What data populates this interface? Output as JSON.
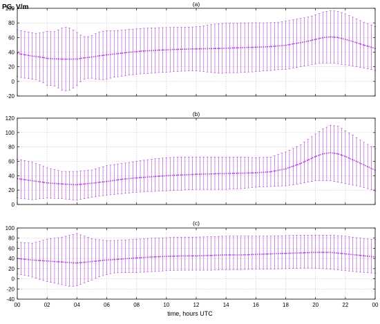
{
  "figure": {
    "ylabel": "PG, V/m",
    "xlabel": "time, hours UTC",
    "x_tick_labels": [
      "00",
      "02",
      "04",
      "06",
      "08",
      "10",
      "12",
      "14",
      "16",
      "18",
      "20",
      "22",
      "00"
    ]
  },
  "colors": {
    "series": "#b040d8",
    "frame": "#000000",
    "grid": "#bdbdbd"
  },
  "chart_data": [
    {
      "type": "line",
      "panel_label": "(a)",
      "x": [
        0,
        0.25,
        0.5,
        0.75,
        1,
        1.25,
        1.5,
        1.75,
        2,
        2.25,
        2.5,
        2.75,
        3,
        3.25,
        3.5,
        3.75,
        4,
        4.25,
        4.5,
        4.75,
        5,
        5.25,
        5.5,
        5.75,
        6,
        6.25,
        6.5,
        6.75,
        7,
        7.25,
        7.5,
        7.75,
        8,
        8.25,
        8.5,
        8.75,
        9,
        9.25,
        9.5,
        9.75,
        10,
        10.25,
        10.5,
        10.75,
        11,
        11.25,
        11.5,
        11.75,
        12,
        12.25,
        12.5,
        12.75,
        13,
        13.25,
        13.5,
        13.75,
        14,
        14.25,
        14.5,
        14.75,
        15,
        15.25,
        15.5,
        15.75,
        16,
        16.25,
        16.5,
        16.75,
        17,
        17.25,
        17.5,
        17.75,
        18,
        18.25,
        18.5,
        18.75,
        19,
        19.25,
        19.5,
        19.75,
        20,
        20.25,
        20.5,
        20.75,
        21,
        21.25,
        21.5,
        21.75,
        22,
        22.25,
        22.5,
        22.75,
        23,
        23.25,
        23.5,
        23.75,
        24
      ],
      "mean": [
        38.5,
        37.4,
        36.4,
        35.6,
        34.7,
        34.1,
        33.4,
        32.6,
        31.4,
        31.2,
        30.9,
        30.7,
        30.5,
        30.5,
        30.5,
        30.6,
        30.6,
        31.4,
        32.2,
        32.8,
        33.5,
        34.2,
        35.0,
        35.6,
        36.3,
        36.9,
        37.5,
        38.0,
        38.5,
        39.2,
        39.9,
        40.3,
        40.8,
        41.2,
        41.6,
        41.9,
        42.2,
        42.5,
        42.8,
        43.0,
        43.2,
        43.4,
        43.6,
        43.8,
        44.0,
        44.1,
        44.3,
        44.4,
        44.5,
        44.6,
        44.7,
        44.8,
        44.9,
        45.0,
        45.1,
        45.2,
        45.4,
        45.6,
        45.8,
        45.9,
        46.1,
        46.3,
        46.5,
        46.6,
        46.8,
        47.0,
        47.2,
        47.4,
        47.6,
        48.0,
        48.5,
        48.9,
        49.4,
        50.3,
        51.3,
        52.2,
        53.1,
        54.0,
        55.1,
        56.3,
        57.5,
        58.7,
        59.8,
        60.4,
        60.9,
        60.6,
        60.0,
        58.7,
        57.5,
        56.1,
        54.5,
        52.9,
        51.2,
        49.6,
        48.2,
        46.6,
        45.0
      ],
      "upper": [
        70.6,
        69.4,
        68.3,
        67.3,
        66.4,
        65.8,
        66.2,
        67.1,
        68.4,
        68.0,
        68.1,
        70.3,
        72.9,
        74.0,
        73.0,
        70.3,
        66.9,
        63.3,
        61.3,
        61.3,
        62.6,
        65.3,
        67.4,
        68.7,
        69.3,
        69.4,
        69.2,
        69.7,
        70.1,
        70.6,
        71.2,
        71.5,
        71.8,
        72.2,
        72.7,
        73.0,
        73.2,
        73.3,
        73.5,
        73.6,
        73.7,
        73.8,
        73.9,
        74.0,
        74.0,
        74.1,
        74.2,
        74.4,
        74.7,
        75.2,
        75.9,
        76.7,
        77.6,
        78.4,
        78.9,
        79.3,
        79.4,
        79.5,
        79.7,
        79.9,
        80.0,
        80.1,
        80.1,
        80.2,
        80.2,
        80.2,
        80.1,
        80.2,
        80.3,
        80.6,
        81.0,
        81.6,
        82.3,
        83.3,
        84.3,
        85.3,
        86.2,
        87.0,
        88.1,
        89.4,
        91.0,
        92.8,
        94.6,
        95.8,
        96.6,
        96.4,
        95.7,
        94.2,
        92.4,
        90.2,
        87.8,
        85.5,
        83.1,
        81.0,
        79.1,
        77.1,
        75.0
      ],
      "lower": [
        6.4,
        5.4,
        4.5,
        3.9,
        3.0,
        2.4,
        0.6,
        -1.9,
        -5.6,
        -5.6,
        -6.3,
        -8.9,
        -11.9,
        -13.0,
        -12.0,
        -9.1,
        -5.7,
        -0.5,
        3.1,
        4.3,
        4.4,
        3.1,
        2.6,
        2.5,
        3.3,
        4.4,
        5.8,
        6.3,
        6.9,
        7.8,
        8.6,
        9.1,
        9.8,
        10.2,
        10.5,
        10.8,
        11.2,
        11.7,
        12.1,
        12.4,
        12.7,
        13.0,
        13.3,
        13.6,
        14.0,
        14.1,
        14.4,
        14.4,
        14.3,
        14.0,
        13.5,
        12.9,
        12.2,
        11.6,
        11.3,
        11.1,
        11.4,
        11.7,
        11.9,
        11.9,
        12.2,
        12.5,
        12.9,
        13.0,
        13.4,
        13.8,
        14.3,
        14.6,
        14.9,
        15.4,
        16.0,
        16.2,
        16.5,
        17.3,
        18.3,
        19.1,
        20.0,
        21.0,
        22.1,
        23.2,
        24.0,
        24.6,
        25.0,
        25.0,
        25.2,
        24.8,
        24.3,
        23.2,
        22.6,
        22.0,
        21.2,
        20.3,
        19.3,
        18.2,
        17.3,
        16.1,
        15.0
      ],
      "ylim": [
        -20,
        100
      ],
      "yticks": [
        -20,
        0,
        20,
        40,
        60,
        80,
        100
      ]
    },
    {
      "type": "line",
      "panel_label": "(b)",
      "x": [
        0,
        0.25,
        0.5,
        0.75,
        1,
        1.25,
        1.5,
        1.75,
        2,
        2.25,
        2.5,
        2.75,
        3,
        3.25,
        3.5,
        3.75,
        4,
        4.25,
        4.5,
        4.75,
        5,
        5.25,
        5.5,
        5.75,
        6,
        6.25,
        6.5,
        6.75,
        7,
        7.25,
        7.5,
        7.75,
        8,
        8.25,
        8.5,
        8.75,
        9,
        9.25,
        9.5,
        9.75,
        10,
        10.25,
        10.5,
        10.75,
        11,
        11.25,
        11.5,
        11.75,
        12,
        12.25,
        12.5,
        12.75,
        13,
        13.25,
        13.5,
        13.75,
        14,
        14.25,
        14.5,
        14.75,
        15,
        15.25,
        15.5,
        15.75,
        16,
        16.25,
        16.5,
        16.75,
        17,
        17.25,
        17.5,
        17.75,
        18,
        18.25,
        18.5,
        18.75,
        19,
        19.25,
        19.5,
        19.75,
        20,
        20.25,
        20.5,
        20.75,
        21,
        21.25,
        21.5,
        21.75,
        22,
        22.25,
        22.5,
        22.75,
        23,
        23.25,
        23.5,
        23.75,
        24
      ],
      "mean": [
        36.0,
        35.2,
        34.5,
        33.7,
        33.0,
        32.3,
        31.6,
        30.8,
        30.0,
        29.6,
        29.3,
        28.9,
        28.5,
        28.2,
        28.0,
        27.7,
        27.5,
        28.0,
        28.5,
        29.0,
        29.5,
        30.1,
        30.8,
        31.4,
        32.0,
        32.8,
        33.5,
        34.3,
        35.0,
        35.5,
        36.0,
        36.5,
        37.0,
        37.4,
        37.8,
        38.2,
        38.5,
        38.9,
        39.3,
        39.6,
        40.0,
        40.3,
        40.6,
        40.8,
        41.0,
        41.3,
        41.5,
        41.8,
        42.0,
        42.1,
        42.3,
        42.4,
        42.5,
        42.6,
        42.8,
        42.9,
        43.0,
        43.1,
        43.3,
        43.4,
        43.5,
        43.6,
        43.8,
        43.9,
        44.0,
        44.4,
        44.8,
        45.1,
        45.5,
        46.5,
        47.5,
        48.5,
        49.5,
        51.4,
        53.2,
        55.1,
        57.0,
        59.4,
        61.8,
        64.3,
        66.7,
        68.6,
        70.4,
        71.2,
        72.0,
        71.2,
        70.4,
        68.6,
        66.8,
        64.5,
        62.2,
        59.8,
        57.5,
        55.0,
        52.5,
        50.0,
        47.5
      ],
      "upper": [
        63.0,
        62.0,
        61.0,
        60.0,
        59.0,
        57.0,
        55.0,
        53.0,
        51.0,
        49.8,
        48.5,
        47.3,
        46.0,
        46.0,
        46.0,
        46.0,
        46.0,
        46.5,
        47.0,
        47.5,
        48.0,
        49.5,
        51.0,
        52.5,
        54.0,
        54.8,
        55.5,
        56.3,
        57.0,
        57.8,
        58.5,
        59.3,
        60.0,
        60.8,
        61.5,
        62.3,
        63.0,
        63.5,
        64.0,
        64.5,
        65.0,
        65.3,
        65.5,
        65.8,
        66.0,
        66.0,
        66.0,
        66.0,
        66.0,
        66.0,
        66.0,
        66.0,
        66.0,
        66.0,
        66.0,
        66.0,
        66.0,
        66.0,
        66.0,
        66.0,
        66.0,
        65.8,
        65.5,
        65.3,
        65.0,
        65.3,
        65.5,
        65.8,
        66.0,
        67.8,
        69.5,
        71.3,
        73.0,
        75.5,
        78.0,
        80.5,
        83.0,
        86.8,
        90.5,
        94.3,
        98.0,
        101.5,
        105.0,
        107.5,
        110.0,
        109.5,
        109.0,
        105.8,
        102.5,
        99.5,
        96.5,
        93.0,
        89.5,
        86.5,
        83.5,
        80.5,
        77.5
      ],
      "lower": [
        9.0,
        8.4,
        7.8,
        7.3,
        6.7,
        7.2,
        7.8,
        8.3,
        8.8,
        8.6,
        8.4,
        8.2,
        8.0,
        7.5,
        7.0,
        6.5,
        6.0,
        7.0,
        8.0,
        9.0,
        10.0,
        10.8,
        11.5,
        12.3,
        13.0,
        13.5,
        14.0,
        14.5,
        15.0,
        15.5,
        16.0,
        16.5,
        17.0,
        17.3,
        17.5,
        17.8,
        18.0,
        18.3,
        18.5,
        18.8,
        19.0,
        19.3,
        19.5,
        19.8,
        20.0,
        20.3,
        20.5,
        20.8,
        21.0,
        21.0,
        21.0,
        21.0,
        21.0,
        21.0,
        21.0,
        21.0,
        21.0,
        21.3,
        21.5,
        21.8,
        22.0,
        22.5,
        23.0,
        23.5,
        24.0,
        24.3,
        24.5,
        24.8,
        25.0,
        25.3,
        25.5,
        25.8,
        26.0,
        26.8,
        27.5,
        28.3,
        29.0,
        30.0,
        31.0,
        32.0,
        33.0,
        33.0,
        33.0,
        33.0,
        33.0,
        32.0,
        31.0,
        30.0,
        29.0,
        28.0,
        27.0,
        26.0,
        25.0,
        23.5,
        22.0,
        20.5,
        19.0
      ],
      "ylim": [
        0,
        120
      ],
      "yticks": [
        0,
        20,
        40,
        60,
        80,
        100,
        120
      ]
    },
    {
      "type": "line",
      "panel_label": "(c)",
      "x": [
        0,
        0.25,
        0.5,
        0.75,
        1,
        1.25,
        1.5,
        1.75,
        2,
        2.25,
        2.5,
        2.75,
        3,
        3.25,
        3.5,
        3.75,
        4,
        4.25,
        4.5,
        4.75,
        5,
        5.25,
        5.5,
        5.75,
        6,
        6.25,
        6.5,
        6.75,
        7,
        7.25,
        7.5,
        7.75,
        8,
        8.25,
        8.5,
        8.75,
        9,
        9.25,
        9.5,
        9.75,
        10,
        10.25,
        10.5,
        10.75,
        11,
        11.25,
        11.5,
        11.75,
        12,
        12.25,
        12.5,
        12.75,
        13,
        13.25,
        13.5,
        13.75,
        14,
        14.25,
        14.5,
        14.75,
        15,
        15.25,
        15.5,
        15.75,
        16,
        16.25,
        16.5,
        16.75,
        17,
        17.25,
        17.5,
        17.75,
        18,
        18.25,
        18.5,
        18.75,
        19,
        19.25,
        19.5,
        19.75,
        20,
        20.25,
        20.5,
        20.75,
        21,
        21.25,
        21.5,
        21.75,
        22,
        22.25,
        22.5,
        22.75,
        23,
        23.25,
        23.5,
        23.75,
        24
      ],
      "mean": [
        40.0,
        39.3,
        38.5,
        37.8,
        37.0,
        36.5,
        36.0,
        35.5,
        35.0,
        34.5,
        34.0,
        33.5,
        33.0,
        32.5,
        32.0,
        31.5,
        31.0,
        31.8,
        32.5,
        33.3,
        34.0,
        34.8,
        35.5,
        36.3,
        37.0,
        37.5,
        38.0,
        38.5,
        39.0,
        39.5,
        40.0,
        40.5,
        41.0,
        41.5,
        42.0,
        42.5,
        43.0,
        43.3,
        43.5,
        43.8,
        44.0,
        44.3,
        44.5,
        44.8,
        45.0,
        45.0,
        45.0,
        45.0,
        45.0,
        45.3,
        45.5,
        45.8,
        46.0,
        46.3,
        46.5,
        46.8,
        47.0,
        47.0,
        47.0,
        47.0,
        47.0,
        47.3,
        47.5,
        47.8,
        48.0,
        48.3,
        48.5,
        48.8,
        49.0,
        49.3,
        49.5,
        49.8,
        50.0,
        50.3,
        50.5,
        50.8,
        51.0,
        51.3,
        51.5,
        51.8,
        52.0,
        52.0,
        52.0,
        52.0,
        52.0,
        51.3,
        50.5,
        49.8,
        49.0,
        48.3,
        47.5,
        46.8,
        46.0,
        45.3,
        44.5,
        43.8,
        43.0
      ],
      "upper": [
        72.0,
        71.5,
        71.0,
        70.5,
        70.0,
        72.0,
        74.0,
        76.0,
        78.0,
        79.0,
        80.0,
        81.0,
        82.0,
        83.8,
        85.5,
        87.3,
        89.0,
        86.5,
        84.0,
        81.5,
        79.0,
        78.0,
        77.0,
        76.0,
        75.0,
        75.3,
        75.5,
        75.8,
        76.0,
        76.5,
        77.0,
        77.5,
        78.0,
        78.5,
        79.0,
        79.5,
        80.0,
        80.3,
        80.5,
        80.8,
        81.0,
        81.3,
        81.5,
        81.8,
        82.0,
        82.0,
        82.0,
        82.0,
        82.0,
        82.3,
        82.5,
        82.8,
        83.0,
        83.3,
        83.5,
        83.8,
        84.0,
        84.0,
        84.0,
        84.0,
        84.0,
        84.0,
        84.0,
        84.0,
        84.0,
        84.0,
        84.0,
        84.0,
        84.0,
        84.3,
        84.5,
        84.8,
        85.0,
        85.3,
        85.5,
        85.8,
        86.0,
        86.0,
        86.0,
        86.0,
        86.0,
        86.0,
        86.0,
        86.0,
        86.0,
        85.5,
        85.0,
        84.5,
        84.0,
        83.0,
        82.0,
        81.0,
        80.0,
        79.3,
        78.5,
        77.8,
        77.0
      ],
      "lower": [
        9.0,
        8.0,
        7.0,
        5.3,
        3.5,
        1.3,
        -1.0,
        -3.3,
        -5.5,
        -7.0,
        -8.5,
        -10.0,
        -11.5,
        -13.0,
        -14.5,
        -15.0,
        -13.5,
        -10.8,
        -8.0,
        -5.3,
        -2.5,
        0.8,
        4.0,
        6.3,
        8.5,
        10.0,
        11.5,
        11.8,
        12.0,
        12.0,
        12.0,
        12.3,
        12.5,
        12.8,
        13.0,
        13.5,
        14.0,
        14.5,
        15.0,
        15.5,
        16.0,
        16.3,
        16.5,
        16.8,
        17.0,
        17.0,
        17.0,
        17.0,
        17.0,
        17.0,
        17.0,
        17.0,
        17.0,
        17.3,
        17.5,
        17.8,
        18.0,
        18.0,
        18.0,
        18.0,
        18.0,
        18.3,
        18.5,
        18.8,
        19.0,
        19.0,
        19.0,
        19.0,
        19.0,
        19.3,
        19.5,
        19.8,
        20.0,
        20.3,
        20.5,
        20.8,
        21.0,
        21.0,
        21.0,
        21.0,
        21.0,
        20.5,
        20.0,
        19.5,
        19.0,
        18.3,
        17.5,
        16.8,
        16.0,
        15.3,
        14.5,
        13.8,
        13.0,
        12.5,
        12.0,
        11.5,
        11.0
      ],
      "ylim": [
        -40,
        100
      ],
      "yticks": [
        -40,
        -20,
        0,
        20,
        40,
        60,
        80,
        100
      ]
    }
  ]
}
